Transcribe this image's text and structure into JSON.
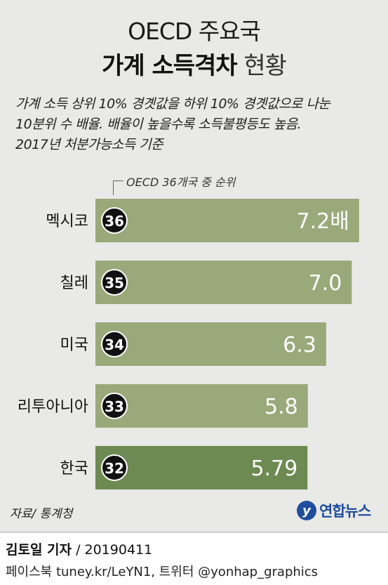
{
  "header": {
    "title_line1": "OECD 주요국",
    "title_line2_strong": "가계 소득격차",
    "title_line2_light": "현황"
  },
  "description": [
    "가계 소득 상위 10% 경곗값을 하위 10% 경곗값으로 나눈",
    "10분위 수 배율. 배율이 높을수록 소득불평등도 높음.",
    "2017년 처분가능소득 기준"
  ],
  "rank_note": "OECD 36개국 중 순위",
  "chart_data": {
    "type": "bar",
    "orientation": "horizontal",
    "categories": [
      "멕시코",
      "칠레",
      "미국",
      "리투아니아",
      "한국"
    ],
    "ranks": [
      "36",
      "35",
      "34",
      "33",
      "32"
    ],
    "values": [
      7.2,
      7.0,
      6.3,
      5.8,
      5.79
    ],
    "value_labels": [
      "7.2배",
      "7.0",
      "6.3",
      "5.8",
      "5.79"
    ],
    "highlight": "한국",
    "colors": {
      "bar": "#9aa97a",
      "highlight": "#6d8a52",
      "rank_circle": "#111111"
    }
  },
  "footer": {
    "source": "자료/ 통계청",
    "logo_mark": "y",
    "logo_text": "연합뉴스",
    "reporter_name": "김토일 기자",
    "reporter_date": "/ 20190411",
    "social": "페이스북 tuney.kr/LeYN1, 트위터 @yonhap_graphics"
  }
}
